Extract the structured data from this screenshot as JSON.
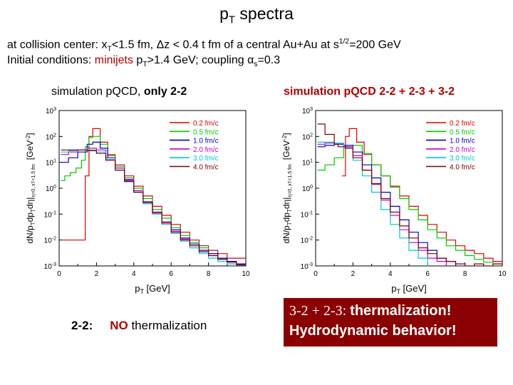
{
  "title": {
    "main": "p",
    "sub": "T",
    "rest": " spectra"
  },
  "subtitle": {
    "line1_a": "at collision center: x",
    "line1_sub": "T",
    "line1_b": "<1.5 fm,  Δz < 0.4 t fm of a central Au+Au at  s",
    "line1_sup": "1/2",
    "line1_c": "=200 GeV",
    "line2_a": "Initial conditions: ",
    "line2_minijets": "minijets",
    "line2_b": " p",
    "line2_sub": "T",
    "line2_c": ">1.4 GeV;   coupling α",
    "line2_sub2": "s",
    "line2_d": "=0.3"
  },
  "captions": {
    "left_a": "simulation pQCD, ",
    "left_b": "only 2-2",
    "right_a": "simulation pQCD 2-2 ",
    "right_plus": "+",
    "right_b": " 2-3 ",
    "right_plus2": "+",
    "right_c": " 3-2"
  },
  "verdicts": {
    "left_label": "2-2:",
    "left_no": "NO",
    "left_rest": " thermalization",
    "right_serif": "3-2 + 2-3: ",
    "right_line1": "thermalization!",
    "right_line2": "Hydrodynamic behavior!"
  },
  "colors": {
    "accent_red": "#b00000",
    "box_bg": "#8b0000"
  },
  "chart_data": [
    {
      "type": "line",
      "title": "simulation pQCD, only 2-2",
      "xlabel": "p_T [GeV]",
      "ylabel": "dN/p_T dp_T dη|η=0, x_T<1.5 fm [GeV^-2]",
      "xlim": [
        0,
        10
      ],
      "ylim": [
        0.001,
        1000
      ],
      "yscale": "log",
      "x_ticks": [
        "0",
        "2",
        "4",
        "6",
        "8",
        "10"
      ],
      "y_ticks": [
        "10^-3",
        "10^-2",
        "10^-1",
        "10^0",
        "10^1",
        "10^2",
        "10^3"
      ],
      "legend_position": "top-right",
      "series": [
        {
          "name": "0.2 fm/c",
          "color": "#e00000",
          "x": [
            0.2,
            0.8,
            1.2,
            1.4,
            1.6,
            1.8,
            2.2,
            2.6,
            3,
            3.5,
            4,
            4.5,
            5,
            5.5,
            6,
            6.5,
            7,
            7.5,
            8,
            8.5,
            9,
            9.5,
            10
          ],
          "y": [
            0.01,
            0.01,
            0.01,
            3,
            100,
            200,
            60,
            20,
            8,
            3,
            1.2,
            0.5,
            0.2,
            0.09,
            0.04,
            0.02,
            0.01,
            0.006,
            0.004,
            0.003,
            0.002,
            0.002,
            0.002
          ]
        },
        {
          "name": "0.5 fm/c",
          "color": "#00cc00",
          "x": [
            0.1,
            0.3,
            0.6,
            0.9,
            1.2,
            1.4,
            1.6,
            1.8,
            2.2,
            2.6,
            3,
            3.5,
            4,
            4.5,
            5,
            5.5,
            6,
            6.5,
            7,
            7.5,
            8,
            8.5,
            9,
            9.5,
            10
          ],
          "y": [
            2,
            3,
            4,
            6,
            12,
            40,
            90,
            100,
            50,
            18,
            7,
            2.5,
            1,
            0.4,
            0.15,
            0.07,
            0.03,
            0.015,
            0.008,
            0.005,
            0.003,
            0.002,
            0.0015,
            0.0012,
            0.001
          ]
        },
        {
          "name": "1.0 fm/c",
          "color": "#0000cc",
          "x": [
            0.1,
            0.5,
            1,
            1.5,
            1.8,
            2.2,
            2.6,
            3,
            3.5,
            4,
            4.5,
            5,
            5.5,
            6,
            6.5,
            7,
            7.5,
            8,
            8.5,
            9,
            9.5,
            10
          ],
          "y": [
            10,
            15,
            25,
            50,
            60,
            35,
            15,
            6,
            2,
            0.8,
            0.3,
            0.12,
            0.05,
            0.025,
            0.012,
            0.007,
            0.004,
            0.003,
            0.002,
            0.0015,
            0.0012,
            0.001
          ]
        },
        {
          "name": "2.0 fm/c",
          "color": "#cc00cc",
          "x": [
            0.1,
            0.5,
            1,
            1.5,
            2,
            2.5,
            3,
            3.5,
            4,
            4.5,
            5,
            5.5,
            6,
            6.5,
            7,
            7.5,
            8,
            8.5,
            9,
            9.5,
            10
          ],
          "y": [
            20,
            25,
            30,
            35,
            30,
            15,
            6,
            2.2,
            0.8,
            0.3,
            0.12,
            0.05,
            0.022,
            0.011,
            0.006,
            0.0035,
            0.0025,
            0.0018,
            0.0014,
            0.0011,
            0.001
          ]
        },
        {
          "name": "3.0 fm/c",
          "color": "#00cccc",
          "x": [
            0.1,
            0.5,
            1,
            1.5,
            2,
            2.5,
            3,
            3.5,
            4,
            4.5,
            5,
            5.5,
            6,
            6.5,
            7,
            7.5,
            8,
            8.5,
            9,
            9.5
          ],
          "y": [
            25,
            28,
            30,
            30,
            25,
            13,
            5,
            1.8,
            0.7,
            0.25,
            0.1,
            0.04,
            0.018,
            0.009,
            0.005,
            0.003,
            0.002,
            0.0015,
            0.0012,
            0.001
          ]
        },
        {
          "name": "4.0 fm/c",
          "color": "#800000",
          "x": [
            0.1,
            0.5,
            1,
            1.5,
            2,
            2.5,
            3,
            3.5,
            4,
            4.5,
            5,
            5.5,
            6,
            6.5,
            7,
            7.5,
            8,
            8.5,
            9,
            9.5,
            10
          ],
          "y": [
            30,
            30,
            30,
            28,
            22,
            12,
            5,
            1.8,
            0.7,
            0.28,
            0.11,
            0.045,
            0.02,
            0.01,
            0.006,
            0.0035,
            0.0025,
            0.0018,
            0.0014,
            0.0011,
            0.001
          ]
        }
      ]
    },
    {
      "type": "line",
      "title": "simulation pQCD 2-2 + 2-3 + 3-2",
      "xlabel": "p_T [GeV]",
      "ylabel": "dN/p_T dp_T dη|η=0, x_T<1.5 fm [GeV^-2]",
      "xlim": [
        0,
        10
      ],
      "ylim": [
        0.001,
        1000
      ],
      "yscale": "log",
      "x_ticks": [
        "0",
        "2",
        "4",
        "6",
        "8",
        "10"
      ],
      "y_ticks": [
        "10^-3",
        "10^-2",
        "10^-1",
        "10^0",
        "10^1",
        "10^2",
        "10^3"
      ],
      "legend_position": "top-right",
      "series": [
        {
          "name": "0.2 fm/c",
          "color": "#e00000",
          "x": [
            1.4,
            1.6,
            1.8,
            2.2,
            2.6,
            3,
            3.5,
            4,
            4.5,
            5,
            5.5,
            6,
            6.5,
            7,
            7.5,
            8,
            8.5,
            9,
            9.5,
            10
          ],
          "y": [
            3,
            100,
            200,
            60,
            20,
            8,
            3,
            1.2,
            0.5,
            0.2,
            0.09,
            0.04,
            0.02,
            0.01,
            0.006,
            0.004,
            0.003,
            0.002,
            0.0015,
            0.0012
          ]
        },
        {
          "name": "0.5 fm/c",
          "color": "#00cc00",
          "x": [
            0.1,
            0.5,
            1,
            1.5,
            2,
            2.5,
            3,
            3.5,
            4,
            4.5,
            5,
            5.5,
            6,
            6.5,
            7,
            7.5,
            8,
            8.5,
            9,
            9.5,
            10
          ],
          "y": [
            5,
            8,
            15,
            40,
            45,
            22,
            8,
            3,
            1.1,
            0.4,
            0.15,
            0.06,
            0.025,
            0.012,
            0.006,
            0.004,
            0.0025,
            0.0018,
            0.0014,
            0.0012,
            0.001
          ]
        },
        {
          "name": "1.0 fm/c",
          "color": "#0000cc",
          "x": [
            0.1,
            0.5,
            1,
            1.5,
            2,
            2.5,
            3,
            3.5,
            4,
            4.5,
            5,
            5.5,
            6,
            6.5,
            7,
            7.5
          ],
          "y": [
            40,
            45,
            50,
            45,
            25,
            8,
            2.5,
            0.7,
            0.2,
            0.06,
            0.02,
            0.008,
            0.004,
            0.002,
            0.0015,
            0.001
          ]
        },
        {
          "name": "2.0 fm/c",
          "color": "#cc00cc",
          "x": [
            0.1,
            0.5,
            1,
            1.5,
            2,
            2.5,
            3,
            3.5,
            4,
            4.5,
            5,
            5.5,
            6,
            6.5,
            7
          ],
          "y": [
            50,
            55,
            55,
            40,
            18,
            5,
            1.4,
            0.35,
            0.09,
            0.025,
            0.008,
            0.004,
            0.002,
            0.0015,
            0.001
          ]
        },
        {
          "name": "3.0 fm/c",
          "color": "#00cccc",
          "x": [
            0.1,
            0.5,
            1,
            1.5,
            2,
            2.5,
            3,
            3.5,
            4,
            4.5,
            5,
            5.5,
            6
          ],
          "y": [
            60,
            60,
            55,
            35,
            12,
            3,
            0.7,
            0.15,
            0.04,
            0.012,
            0.004,
            0.002,
            0.001
          ]
        },
        {
          "name": "4.0 fm/c",
          "color": "#800000",
          "x": [
            0.1,
            0.5,
            1,
            1.2,
            1.4,
            1.6,
            2,
            2.5,
            3,
            3.5,
            4,
            4.5,
            5,
            5.5,
            6,
            6.5,
            7,
            7.5,
            8,
            8.5,
            9,
            9.5,
            10
          ],
          "y": [
            300,
            120,
            50,
            40,
            40,
            35,
            15,
            5,
            1.5,
            0.4,
            0.12,
            0.035,
            0.012,
            0.005,
            0.003,
            0.002,
            0.0015,
            0.0012,
            0.001,
            0.0012,
            0.001,
            0.0012,
            0.001
          ]
        }
      ]
    }
  ]
}
